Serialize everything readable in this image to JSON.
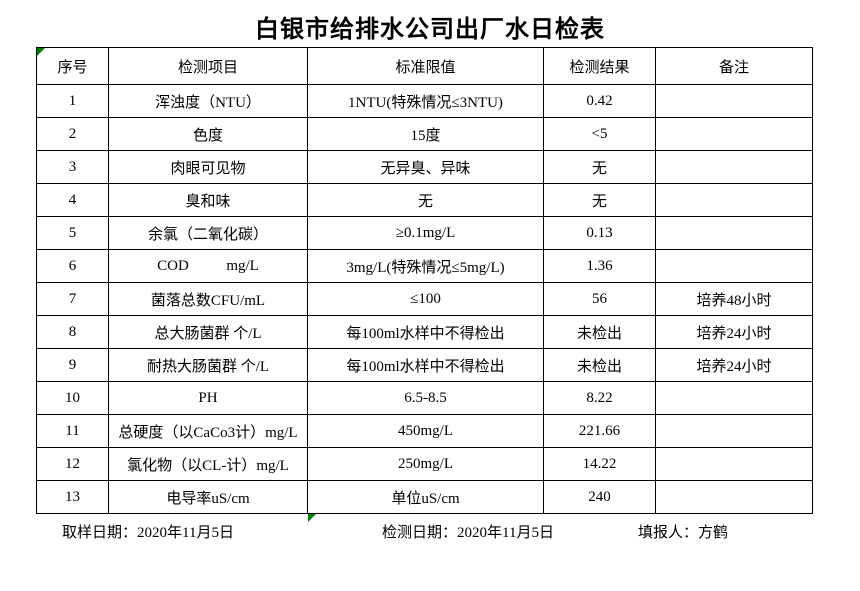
{
  "title": "白银市给排水公司出厂水日检表",
  "table": {
    "headers": [
      "序号",
      "检测项目",
      "标准限值",
      "检测结果",
      "备注"
    ],
    "rows": [
      {
        "no": "1",
        "item": "浑浊度（NTU）",
        "limit": "1NTU(特殊情况≤3NTU)",
        "result": "0.42",
        "remark": ""
      },
      {
        "no": "2",
        "item": "色度",
        "limit": "15度",
        "result": "<5",
        "remark": ""
      },
      {
        "no": "3",
        "item": "肉眼可见物",
        "limit": "无异臭、异味",
        "result": "无",
        "remark": ""
      },
      {
        "no": "4",
        "item": "臭和味",
        "limit": "无",
        "result": "无",
        "remark": ""
      },
      {
        "no": "5",
        "item": "余氯（二氧化碳）",
        "limit": "≥0.1mg/L",
        "result": "0.13",
        "remark": ""
      },
      {
        "no": "6",
        "item": "COD          mg/L",
        "limit": "3mg/L(特殊情况≤5mg/L)",
        "result": "1.36",
        "remark": ""
      },
      {
        "no": "7",
        "item": "菌落总数CFU/mL",
        "limit": "≤100",
        "result": "56",
        "remark": "培养48小时"
      },
      {
        "no": "8",
        "item": "总大肠菌群 个/L",
        "limit": "每100ml水样中不得检出",
        "result": "未检出",
        "remark": "培养24小时"
      },
      {
        "no": "9",
        "item": "耐热大肠菌群 个/L",
        "limit": "每100ml水样中不得检出",
        "result": "未检出",
        "remark": "培养24小时"
      },
      {
        "no": "10",
        "item": "PH",
        "limit": "6.5-8.5",
        "result": "8.22",
        "remark": ""
      },
      {
        "no": "11",
        "item": "总硬度（以CaCo3计）mg/L",
        "limit": "450mg/L",
        "result": "221.66",
        "remark": ""
      },
      {
        "no": "12",
        "item": "氯化物（以CL-计）mg/L",
        "limit": "250mg/L",
        "result": "14.22",
        "remark": ""
      },
      {
        "no": "13",
        "item": "电导率uS/cm",
        "limit": "单位uS/cm",
        "result": "240",
        "remark": ""
      }
    ]
  },
  "footer": {
    "sampling_date": "取样日期：2020年11月5日",
    "test_date": "检测日期：2020年11月5日",
    "reporter": "填报人：方鹤"
  },
  "colors": {
    "background": "#ffffff",
    "text": "#000000",
    "border": "#000000",
    "indicator_green": "#008000"
  }
}
